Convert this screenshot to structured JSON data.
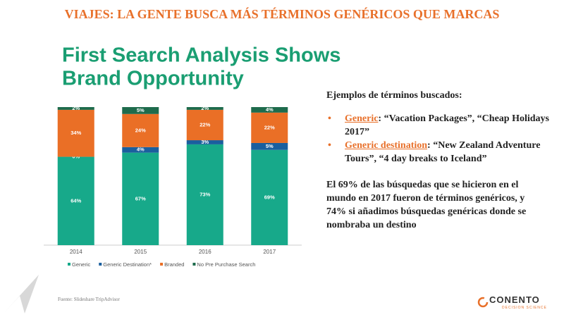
{
  "header": {
    "title": "VIAJES: LA GENTE BUSCA MÁS TÉRMINOS GENÉRICOS QUE MARCAS"
  },
  "chart_data": {
    "type": "stacked_bar",
    "title_lines": [
      "First Search Analysis Shows",
      "Brand Opportunity"
    ],
    "categories": [
      "2014",
      "2015",
      "2016",
      "2017"
    ],
    "ylim": [
      0,
      100
    ],
    "series": [
      {
        "name": "Generic",
        "color": "#17a98a",
        "values": [
          64,
          67,
          73,
          69
        ],
        "value_labels": [
          "64%",
          "67%",
          "73%",
          "69%"
        ]
      },
      {
        "name": "Generic Destination*",
        "color": "#1a5f9e",
        "values": [
          0,
          4,
          3,
          5
        ],
        "value_labels": [
          "0%",
          "4%",
          "3%",
          "5%"
        ]
      },
      {
        "name": "Branded",
        "color": "#ea6f26",
        "values": [
          34,
          24,
          22,
          22
        ],
        "value_labels": [
          "34%",
          "24%",
          "22%",
          "22%"
        ]
      },
      {
        "name": "No Pre Purchase Search",
        "color": "#1e6b4c",
        "values": [
          2,
          5,
          2,
          4
        ],
        "value_labels": [
          "2%",
          "5%",
          "2%",
          "4%"
        ]
      }
    ]
  },
  "text": {
    "heading": "Ejemplos de términos buscados:",
    "bullets": [
      {
        "label": "Generic",
        "rest": ": “Vacation Packages”, “Cheap Holidays 2017”"
      },
      {
        "label": "Generic destination",
        "rest": ": “New Zealand Adventure Tours”, “4 day breaks to Iceland”"
      }
    ],
    "paragraph": "El 69% de las búsquedas que se hicieron en el mundo en 2017 fueron de términos genéricos, y 74% si añadimos búsquedas genéricas donde se nombraba un destino"
  },
  "footer": {
    "source": "Fuente: Slideshare TripAdvisor",
    "logo": "CONENTO",
    "logo_tagline": "DECISION SCIENCE"
  }
}
